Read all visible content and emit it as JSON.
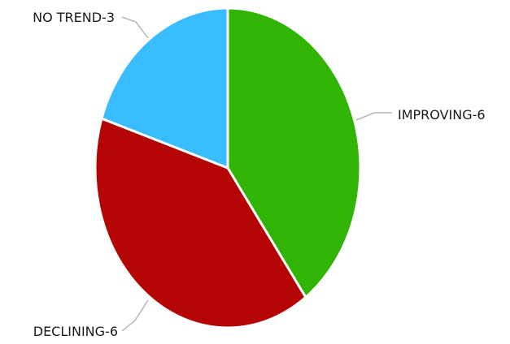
{
  "chart_data": {
    "type": "pie",
    "title": "",
    "slices": [
      {
        "label": "IMPROVING-6",
        "category": "IMPROVING",
        "value": 6,
        "color": "#31b404"
      },
      {
        "label": "DECLINING-6",
        "category": "DECLINING",
        "value": 6,
        "color": "#b40404"
      },
      {
        "label": "NO TREND-3",
        "category": "NO TREND",
        "value": 3,
        "color": "#39bdff"
      }
    ],
    "start": "12 o'clock",
    "direction": "clockwise",
    "legend": "none",
    "labels": "outside with leader lines"
  }
}
